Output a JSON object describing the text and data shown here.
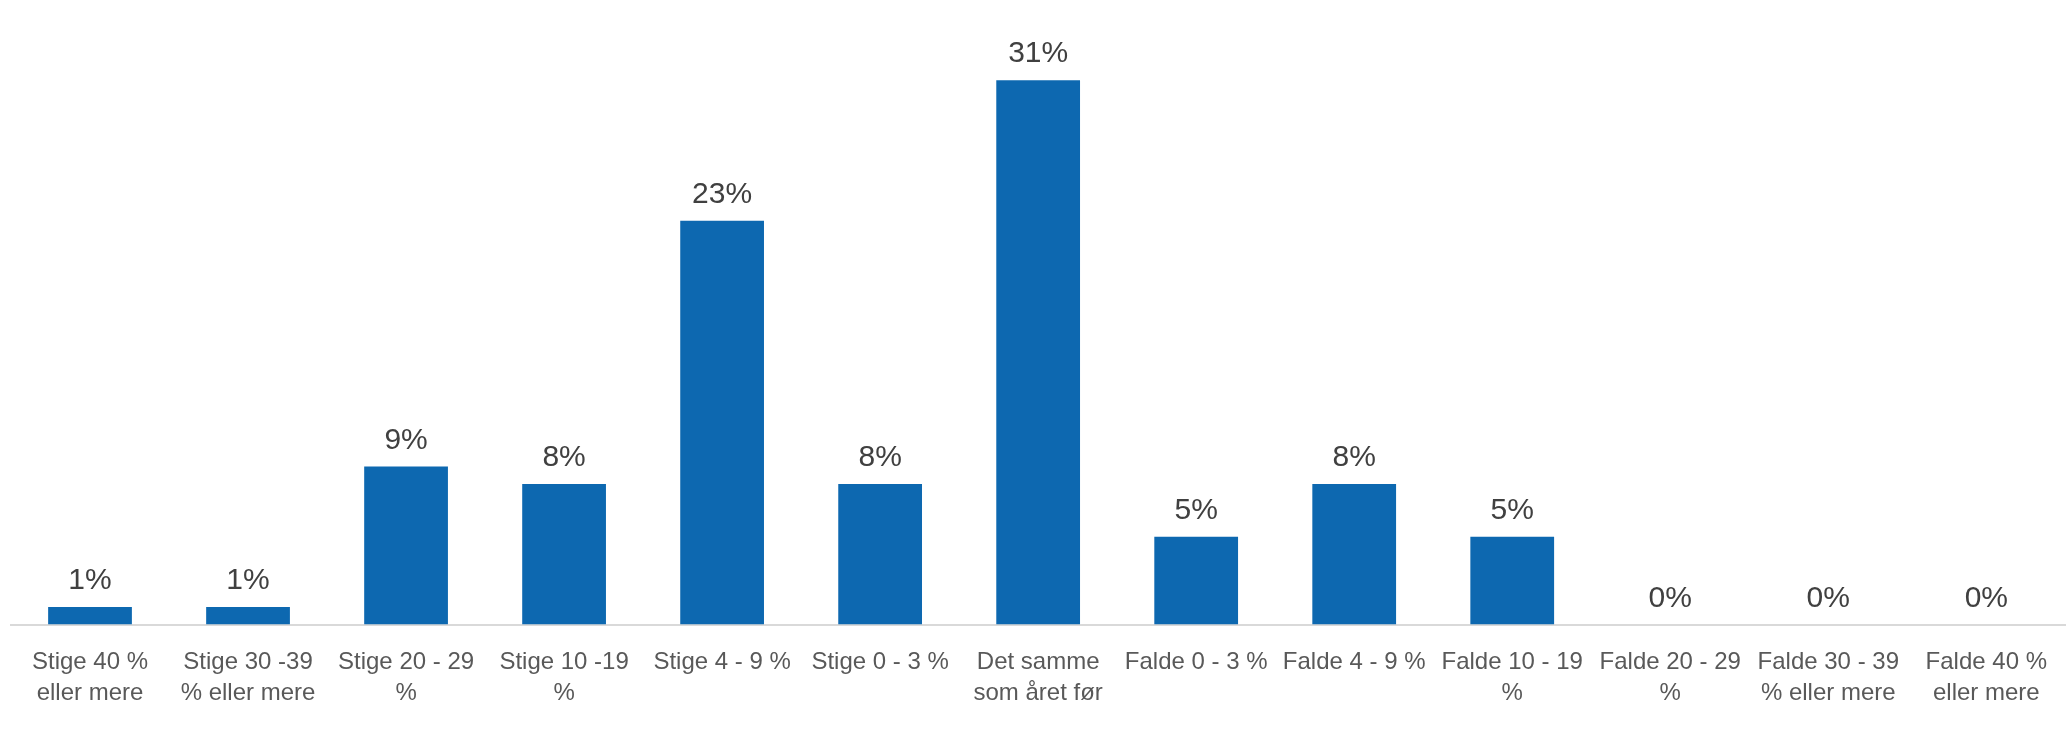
{
  "chart_data": {
    "type": "bar",
    "categories": [
      "Stige 40 % eller mere",
      "Stige 30 -39 % eller mere",
      "Stige 20 - 29 %",
      "Stige 10 -19 %",
      "Stige 4 - 9 %",
      "Stige 0 - 3 %",
      "Det samme som året før",
      "Falde 0 - 3 %",
      "Falde 4 - 9 %",
      "Falde 10 - 19 %",
      "Falde 20 - 29 %",
      "Falde 30 - 39 % eller mere",
      "Falde 40 % eller mere"
    ],
    "values": [
      1,
      1,
      9,
      8,
      23,
      8,
      31,
      5,
      8,
      5,
      0,
      0,
      0
    ],
    "color": "#0d68b0",
    "value_labels": [
      "1%",
      "1%",
      "9%",
      "8%",
      "23%",
      "8%",
      "31%",
      "5%",
      "8%",
      "5%",
      "0%",
      "0%",
      "0%"
    ],
    "tick_labels": "x"
  }
}
